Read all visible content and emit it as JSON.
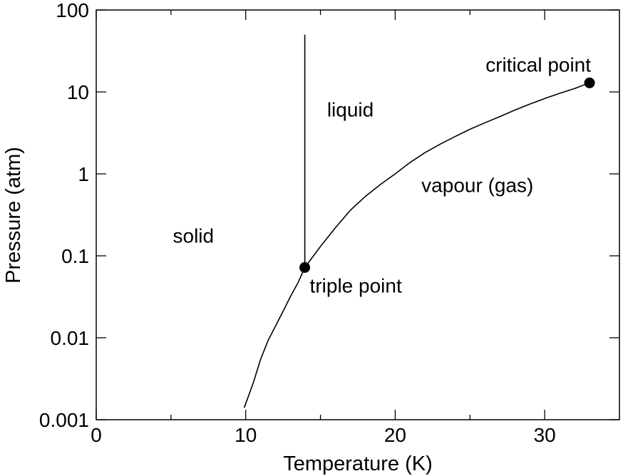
{
  "chart_data": {
    "type": "line",
    "xlabel": "Temperature (K)",
    "ylabel": "Pressure (atm)",
    "xlim": [
      0,
      35
    ],
    "ylim": [
      0.001,
      100
    ],
    "yscale": "log",
    "grid": false,
    "x_ticks": [
      {
        "value": 0,
        "label": "0"
      },
      {
        "value": 10,
        "label": "10"
      },
      {
        "value": 20,
        "label": "20"
      },
      {
        "value": 30,
        "label": "30"
      }
    ],
    "x_minor_ticks": [
      5,
      15,
      25
    ],
    "y_ticks": [
      {
        "value": 0.001,
        "label": "0.001"
      },
      {
        "value": 0.01,
        "label": "0.01"
      },
      {
        "value": 0.1,
        "label": "0.1"
      },
      {
        "value": 1,
        "label": "1"
      },
      {
        "value": 10,
        "label": "10"
      },
      {
        "value": 100,
        "label": "100"
      }
    ],
    "series": [
      {
        "x": [
          9.9,
          10.5,
          11.0,
          11.5,
          12.0,
          12.5,
          13.0,
          13.5,
          13.95,
          15.0,
          16.0,
          17.0,
          18.0,
          19.0,
          20.0,
          21.0,
          22.0,
          23.0,
          24.0,
          25.0,
          26.0,
          27.0,
          28.0,
          29.0,
          30.0,
          31.0,
          32.0,
          33.0
        ],
        "y": [
          0.0014,
          0.0028,
          0.0055,
          0.0093,
          0.014,
          0.021,
          0.032,
          0.047,
          0.072,
          0.13,
          0.22,
          0.36,
          0.53,
          0.74,
          1.0,
          1.38,
          1.82,
          2.3,
          2.85,
          3.5,
          4.2,
          5.0,
          6.0,
          7.1,
          8.3,
          9.6,
          11.0,
          12.9
        ]
      },
      {
        "x": [
          13.95,
          13.95
        ],
        "y": [
          0.072,
          50
        ]
      }
    ],
    "points": [
      {
        "x": 13.95,
        "y": 0.072,
        "label": "triple point"
      },
      {
        "x": 33.0,
        "y": 12.9,
        "label": "critical point"
      }
    ],
    "regions": [
      {
        "label": "solid",
        "x": 6.5,
        "y": 0.145
      },
      {
        "label": "liquid",
        "x": 17.0,
        "y": 5.0
      },
      {
        "label": "vapour (gas)",
        "x": 25.5,
        "y": 0.6
      }
    ]
  }
}
